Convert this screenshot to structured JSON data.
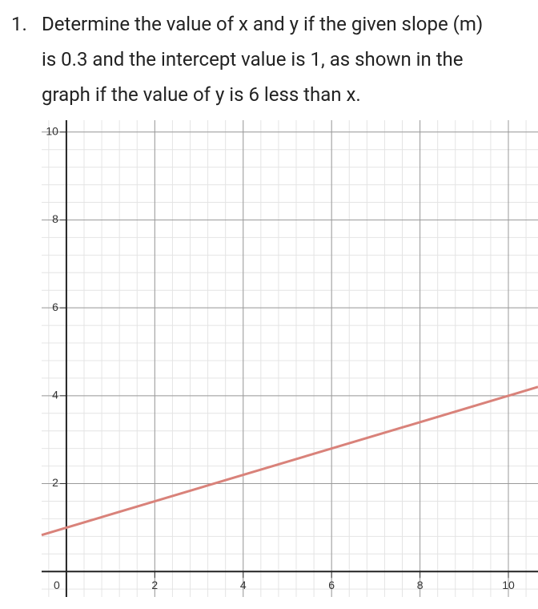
{
  "question": {
    "number": "1.",
    "lines": [
      "Determine the value of x and y if the given slope (m)",
      "is 0.3 and the intercept value is 1, as shown in the",
      "graph if the value of y is 6 less than x."
    ]
  },
  "chart_data": {
    "type": "line",
    "x": [
      -0.56,
      10.67
    ],
    "series": [
      {
        "color": "#d9827a",
        "values": [
          0.83,
          4.2
        ]
      }
    ],
    "xlim": [
      -0.56,
      10.67
    ],
    "ylim": [
      -0.58,
      10.27
    ],
    "xticks": [
      0,
      2,
      4,
      6,
      8,
      10
    ],
    "yticks": [
      2,
      4,
      6,
      8,
      10
    ],
    "grid": true
  }
}
